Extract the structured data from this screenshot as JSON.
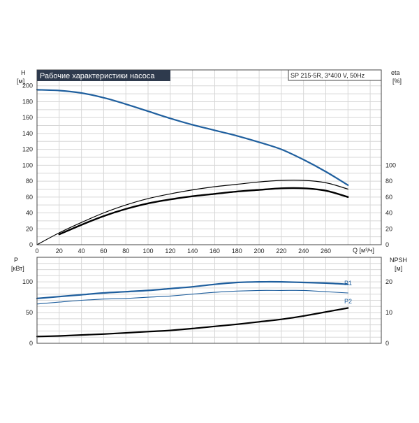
{
  "chart_data": [
    {
      "type": "line",
      "title": "Рабочие характеристики насоса",
      "subtitle": "SP 215-5R, 3*400 V, 50Hz",
      "left_axis": {
        "label": "H",
        "unit": "[м]",
        "ticks": [
          0,
          20,
          40,
          60,
          80,
          100,
          120,
          140,
          160,
          180,
          200
        ],
        "range": [
          0,
          220
        ]
      },
      "right_axis": {
        "label": "eta",
        "unit": "[%]",
        "ticks": [
          0,
          20,
          40,
          60,
          80,
          100
        ],
        "range": [
          0,
          220
        ]
      },
      "x_axis": {
        "label": "Q [м³/ч]",
        "ticks": [
          0,
          20,
          40,
          60,
          80,
          100,
          120,
          140,
          160,
          180,
          200,
          220,
          240,
          260
        ],
        "range": [
          0,
          310
        ]
      },
      "grid": true,
      "series": [
        {
          "color": "#1f5f9e",
          "axis": "left",
          "width": 2.2,
          "x": [
            0,
            20,
            40,
            60,
            80,
            100,
            120,
            140,
            160,
            180,
            200,
            220,
            240,
            260,
            280
          ],
          "y": [
            195,
            194,
            191,
            185,
            177,
            168,
            159,
            151,
            144,
            137,
            129,
            120,
            107,
            92,
            75
          ]
        },
        {
          "color": "#000000",
          "axis": "right",
          "width": 1.2,
          "x": [
            0,
            20,
            40,
            60,
            80,
            100,
            120,
            140,
            160,
            180,
            200,
            220,
            240,
            260,
            280
          ],
          "y": [
            0,
            15,
            28,
            40,
            50,
            58,
            64,
            69,
            73,
            76,
            79,
            81,
            81,
            78,
            70
          ]
        },
        {
          "color": "#000000",
          "axis": "right",
          "width": 2.4,
          "x": [
            20,
            40,
            60,
            80,
            100,
            120,
            140,
            160,
            180,
            200,
            220,
            240,
            260,
            280
          ],
          "y": [
            13,
            25,
            36,
            45,
            52,
            57,
            61,
            64,
            67,
            69,
            71,
            71,
            68,
            60
          ]
        }
      ]
    },
    {
      "type": "line",
      "left_axis": {
        "label": "P",
        "unit": "[кВт]",
        "ticks": [
          0,
          50,
          100
        ],
        "range": [
          0,
          140
        ]
      },
      "right_axis": {
        "label": "NPSH",
        "unit": "[м]",
        "ticks": [
          0,
          10,
          20
        ],
        "range": [
          0,
          28
        ]
      },
      "grid": true,
      "series": [
        {
          "name": "P1",
          "color": "#1f5f9e",
          "axis": "left",
          "width": 2.2,
          "x": [
            0,
            20,
            40,
            60,
            80,
            100,
            120,
            140,
            160,
            180,
            200,
            220,
            240,
            260,
            280
          ],
          "y": [
            73,
            76,
            79,
            82,
            84,
            86,
            89,
            92,
            96,
            99,
            100,
            100,
            99,
            98,
            96
          ]
        },
        {
          "name": "P2",
          "color": "#1f5f9e",
          "axis": "left",
          "width": 1.1,
          "x": [
            0,
            20,
            40,
            60,
            80,
            100,
            120,
            140,
            160,
            180,
            200,
            220,
            240,
            260,
            280
          ],
          "y": [
            64,
            67,
            70,
            72,
            73,
            75,
            77,
            80,
            83,
            85,
            86,
            86,
            86,
            84,
            82
          ]
        },
        {
          "color": "#000000",
          "axis": "right",
          "width": 2.2,
          "x": [
            0,
            20,
            40,
            60,
            80,
            100,
            120,
            140,
            160,
            180,
            200,
            220,
            240,
            260,
            280
          ],
          "y": [
            2.2,
            2.4,
            2.7,
            3.0,
            3.4,
            3.8,
            4.2,
            4.8,
            5.5,
            6.2,
            7.0,
            7.8,
            8.9,
            10.2,
            11.5
          ]
        }
      ]
    }
  ]
}
